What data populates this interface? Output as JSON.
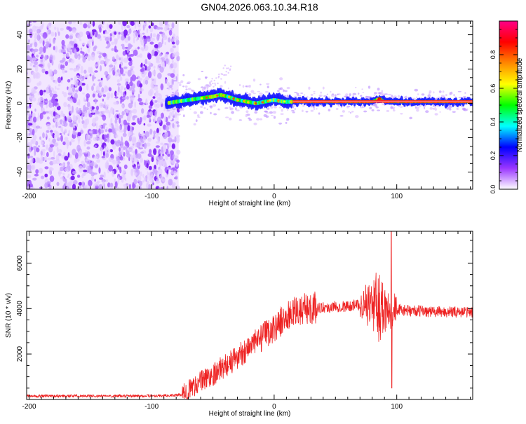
{
  "chart_data": [
    {
      "type": "heatmap",
      "title": "GN04.2026.063.10.34.R18",
      "xlabel": "Height of straight line (km)",
      "ylabel": "Frequency (Hz)",
      "xlim": [
        -202,
        162
      ],
      "ylim": [
        -50,
        48
      ],
      "xticks": [
        -200,
        -100,
        0,
        100
      ],
      "xtick_labels": [
        "-200",
        "-100",
        "0",
        "100"
      ],
      "yticks": [
        -40,
        -20,
        0,
        20,
        40
      ],
      "ytick_labels": [
        "-40",
        "-20",
        "0",
        "20",
        "40"
      ],
      "noise_region_x": [
        -202,
        -78
      ],
      "ridge": {
        "x": [
          -88,
          -80,
          -70,
          -60,
          -50,
          -44,
          -38,
          -30,
          -22,
          -15,
          -8,
          0,
          8,
          15,
          40,
          60,
          80,
          86,
          90,
          100,
          120,
          162
        ],
        "freq": [
          0,
          1,
          2,
          3,
          4,
          5,
          4,
          2,
          1,
          0,
          1,
          2,
          1,
          1,
          1,
          1,
          1,
          3,
          1,
          1,
          1,
          1
        ]
      },
      "colorbar": {
        "label": "Normalized spectral amplitude",
        "range": [
          0,
          1
        ],
        "ticks": [
          0.0,
          0.2,
          0.4,
          0.6,
          0.8
        ],
        "tick_labels": [
          "0.0",
          "0.2",
          "0.4",
          "0.6",
          "0.8"
        ],
        "colors": [
          "#ffffff",
          "#9a36ff",
          "#0000ff",
          "#00ffff",
          "#00ff00",
          "#ffff00",
          "#ff8800",
          "#ff0000",
          "#ff0088"
        ]
      }
    },
    {
      "type": "line",
      "xlabel": "Height of straight line (km)",
      "ylabel": "SNR (10 * v/v)",
      "xlim": [
        -202,
        162
      ],
      "ylim": [
        0,
        7400
      ],
      "xticks": [
        -200,
        -100,
        0,
        100
      ],
      "xtick_labels": [
        "-200",
        "-100",
        "0",
        "100"
      ],
      "yticks": [
        2000,
        4000,
        6000
      ],
      "ytick_labels": [
        "2000",
        "4000",
        "6000"
      ],
      "color": "#ee2222",
      "series": [
        {
          "name": "SNR",
          "x": [
            -202,
            -180,
            -160,
            -140,
            -120,
            -100,
            -85,
            -75,
            -68,
            -60,
            -55,
            -50,
            -45,
            -40,
            -35,
            -30,
            -25,
            -20,
            -15,
            -10,
            -5,
            0,
            5,
            10,
            15,
            20,
            25,
            30,
            35,
            40,
            45,
            50,
            55,
            60,
            65,
            70,
            75,
            80,
            85,
            90,
            95,
            100,
            110,
            120,
            130,
            140,
            150,
            162
          ],
          "values": [
            150,
            150,
            160,
            150,
            150,
            160,
            170,
            200,
            500,
            800,
            950,
            1100,
            1300,
            1500,
            1650,
            1850,
            2100,
            2350,
            2500,
            2700,
            2950,
            3150,
            3400,
            3600,
            3800,
            3900,
            4000,
            4000,
            4050,
            4050,
            4050,
            4100,
            4100,
            4100,
            4150,
            4150,
            4200,
            4200,
            4100,
            4100,
            4000,
            3950,
            3900,
            3900,
            3850,
            3850,
            3850,
            3850
          ]
        }
      ]
    }
  ]
}
